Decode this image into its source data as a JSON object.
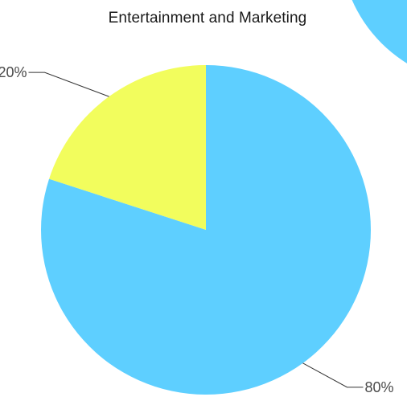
{
  "chart_data": {
    "type": "pie",
    "title": "Entertainment and Marketing",
    "slices": [
      {
        "label": "80%",
        "value": 80,
        "color": "#5ecfff"
      },
      {
        "label": "20%",
        "value": 20,
        "color": "#f2fd5d"
      }
    ],
    "decoration_color": "#5ecfff"
  }
}
